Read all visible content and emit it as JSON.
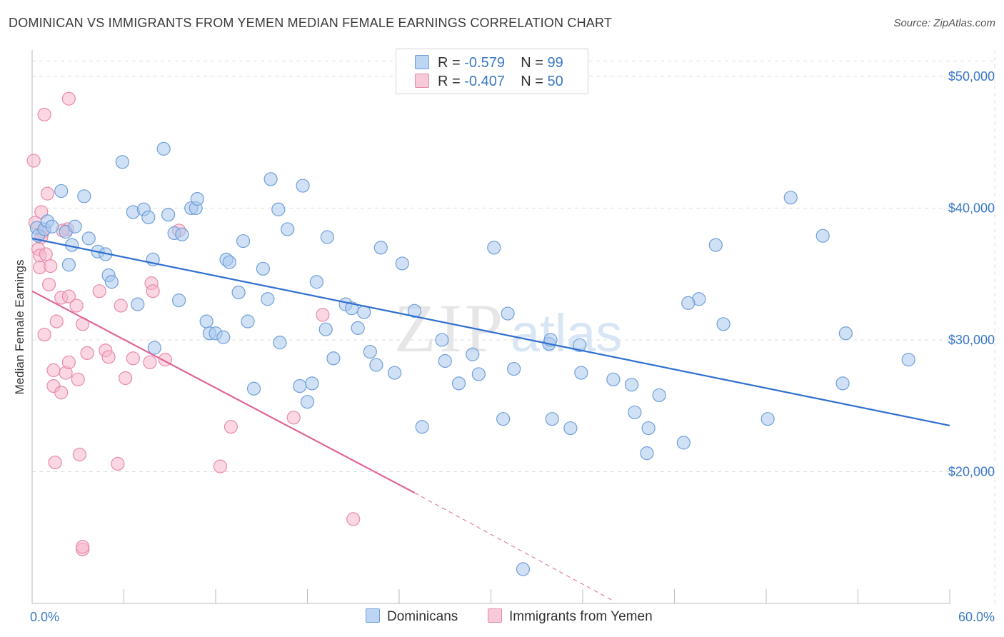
{
  "header": {
    "title": "DOMINICAN VS IMMIGRANTS FROM YEMEN MEDIAN FEMALE EARNINGS CORRELATION CHART",
    "source": "Source: ZipAtlas.com"
  },
  "watermark": {
    "zip": "ZIP",
    "atlas": "atlas"
  },
  "legend": {
    "rows": [
      {
        "r_label": "R =",
        "r_value": "-0.579",
        "n_label": "N =",
        "n_value": "99"
      },
      {
        "r_label": "R =",
        "r_value": "-0.407",
        "n_label": "N =",
        "n_value": "50"
      }
    ]
  },
  "colors": {
    "blue_fill": "#a9c8ef",
    "blue_stroke": "#6f9fd8",
    "blue_line": "#2f6fcf",
    "pink_fill": "#f5b6ca",
    "pink_stroke": "#e88aaa",
    "pink_line": "#e0649a",
    "axis_text": "#3b78c5",
    "grid": "#dddddd"
  },
  "chart_data": {
    "type": "scatter",
    "title": "DOMINICAN VS IMMIGRANTS FROM YEMEN MEDIAN FEMALE EARNINGS CORRELATION CHART",
    "xlabel": "",
    "ylabel": "Median Female Earnings",
    "xlim": [
      0,
      60
    ],
    "ylim": [
      10000,
      52000
    ],
    "x_tick_labels": [
      "0.0%",
      "60.0%"
    ],
    "y_ticks": [
      {
        "value": 20000,
        "label": "$20,000"
      },
      {
        "value": 30000,
        "label": "$30,000"
      },
      {
        "value": 40000,
        "label": "$40,000"
      },
      {
        "value": 50000,
        "label": "$50,000"
      }
    ],
    "grid": true,
    "legend_position": "top-center",
    "series": [
      {
        "name": "Dominicans",
        "color": "#a9c8ef",
        "r": -0.579,
        "n": 99,
        "trend": {
          "x": [
            0,
            60
          ],
          "y": [
            37700,
            23500
          ]
        },
        "points": [
          [
            0.3,
            38500
          ],
          [
            0.4,
            37900
          ],
          [
            0.8,
            38400
          ],
          [
            1.0,
            39000
          ],
          [
            1.3,
            38600
          ],
          [
            1.9,
            41300
          ],
          [
            2.2,
            38200
          ],
          [
            2.6,
            37200
          ],
          [
            2.8,
            38600
          ],
          [
            2.4,
            35700
          ],
          [
            3.4,
            40900
          ],
          [
            3.7,
            37700
          ],
          [
            4.3,
            36700
          ],
          [
            4.8,
            36500
          ],
          [
            5.0,
            34900
          ],
          [
            5.2,
            34400
          ],
          [
            5.9,
            43500
          ],
          [
            6.6,
            39700
          ],
          [
            6.9,
            32700
          ],
          [
            7.3,
            39900
          ],
          [
            7.6,
            39300
          ],
          [
            7.9,
            36100
          ],
          [
            8.0,
            29400
          ],
          [
            8.6,
            44500
          ],
          [
            8.9,
            39500
          ],
          [
            9.3,
            38100
          ],
          [
            9.6,
            33000
          ],
          [
            9.8,
            38000
          ],
          [
            10.4,
            40000
          ],
          [
            10.7,
            40000
          ],
          [
            10.8,
            40700
          ],
          [
            11.4,
            31400
          ],
          [
            11.6,
            30500
          ],
          [
            12.0,
            30500
          ],
          [
            12.5,
            30200
          ],
          [
            12.7,
            36100
          ],
          [
            12.9,
            35900
          ],
          [
            13.5,
            33600
          ],
          [
            13.8,
            37500
          ],
          [
            14.1,
            31400
          ],
          [
            14.5,
            26300
          ],
          [
            15.1,
            35400
          ],
          [
            15.4,
            33100
          ],
          [
            15.6,
            42200
          ],
          [
            16.1,
            39900
          ],
          [
            16.2,
            29800
          ],
          [
            16.7,
            38400
          ],
          [
            17.5,
            26500
          ],
          [
            17.7,
            41700
          ],
          [
            18.0,
            25300
          ],
          [
            18.3,
            26700
          ],
          [
            18.6,
            34400
          ],
          [
            19.2,
            30800
          ],
          [
            19.3,
            37800
          ],
          [
            19.7,
            28600
          ],
          [
            20.5,
            32700
          ],
          [
            20.9,
            32400
          ],
          [
            21.3,
            30900
          ],
          [
            21.7,
            32100
          ],
          [
            22.1,
            29100
          ],
          [
            22.5,
            28100
          ],
          [
            22.8,
            37000
          ],
          [
            23.7,
            27500
          ],
          [
            24.2,
            35800
          ],
          [
            25.0,
            32200
          ],
          [
            25.5,
            23400
          ],
          [
            26.8,
            30000
          ],
          [
            27.0,
            28400
          ],
          [
            27.9,
            26700
          ],
          [
            28.8,
            28900
          ],
          [
            29.2,
            27400
          ],
          [
            30.2,
            37000
          ],
          [
            30.8,
            24000
          ],
          [
            31.1,
            32000
          ],
          [
            31.5,
            27800
          ],
          [
            32.1,
            12600
          ],
          [
            33.8,
            29700
          ],
          [
            33.9,
            30000
          ],
          [
            34.0,
            24000
          ],
          [
            35.2,
            23300
          ],
          [
            35.8,
            29600
          ],
          [
            35.9,
            27500
          ],
          [
            38.0,
            27000
          ],
          [
            39.2,
            26600
          ],
          [
            39.4,
            24500
          ],
          [
            40.2,
            21400
          ],
          [
            40.3,
            23300
          ],
          [
            41.0,
            25800
          ],
          [
            42.6,
            22200
          ],
          [
            43.6,
            33100
          ],
          [
            44.7,
            37200
          ],
          [
            45.2,
            31200
          ],
          [
            48.1,
            24000
          ],
          [
            49.6,
            40800
          ],
          [
            51.7,
            37900
          ],
          [
            53.0,
            26700
          ],
          [
            53.2,
            30500
          ],
          [
            57.3,
            28500
          ],
          [
            42.9,
            32800
          ]
        ]
      },
      {
        "name": "Immigrants from Yemen",
        "color": "#f5b6ca",
        "r": -0.407,
        "n": 50,
        "trend": {
          "x": [
            0,
            25
          ],
          "y": [
            33700,
            18400
          ]
        },
        "trend_dashed": {
          "x": [
            25,
            38
          ],
          "y": [
            18400,
            10200
          ]
        },
        "points": [
          [
            0.1,
            43600
          ],
          [
            0.2,
            38900
          ],
          [
            0.4,
            36900
          ],
          [
            0.5,
            36400
          ],
          [
            0.5,
            35500
          ],
          [
            0.6,
            39700
          ],
          [
            0.7,
            38200
          ],
          [
            0.8,
            47100
          ],
          [
            0.8,
            30400
          ],
          [
            0.9,
            36500
          ],
          [
            1.0,
            41100
          ],
          [
            1.1,
            34200
          ],
          [
            1.2,
            35600
          ],
          [
            1.4,
            27700
          ],
          [
            1.4,
            26500
          ],
          [
            1.6,
            31400
          ],
          [
            1.9,
            26000
          ],
          [
            1.9,
            33200
          ],
          [
            2.2,
            27500
          ],
          [
            2.4,
            33300
          ],
          [
            2.3,
            38400
          ],
          [
            2.4,
            28300
          ],
          [
            2.4,
            48300
          ],
          [
            2.9,
            32600
          ],
          [
            3.0,
            27000
          ],
          [
            3.3,
            31200
          ],
          [
            3.3,
            14100
          ],
          [
            3.3,
            14300
          ],
          [
            3.6,
            29000
          ],
          [
            4.4,
            33700
          ],
          [
            4.8,
            29200
          ],
          [
            5.0,
            28700
          ],
          [
            5.6,
            20600
          ],
          [
            5.8,
            32600
          ],
          [
            6.1,
            27100
          ],
          [
            6.6,
            28600
          ],
          [
            7.7,
            28300
          ],
          [
            7.8,
            34300
          ],
          [
            7.9,
            33700
          ],
          [
            8.7,
            28500
          ],
          [
            9.6,
            38300
          ],
          [
            12.3,
            20400
          ],
          [
            13.0,
            23400
          ],
          [
            17.1,
            24100
          ],
          [
            19.0,
            31900
          ],
          [
            21.0,
            16400
          ],
          [
            1.5,
            20700
          ],
          [
            3.1,
            21300
          ],
          [
            0.6,
            37800
          ],
          [
            2.0,
            38300
          ]
        ]
      }
    ]
  },
  "bottom_legend": {
    "items": [
      {
        "label": "Dominicans"
      },
      {
        "label": "Immigrants from Yemen"
      }
    ]
  }
}
